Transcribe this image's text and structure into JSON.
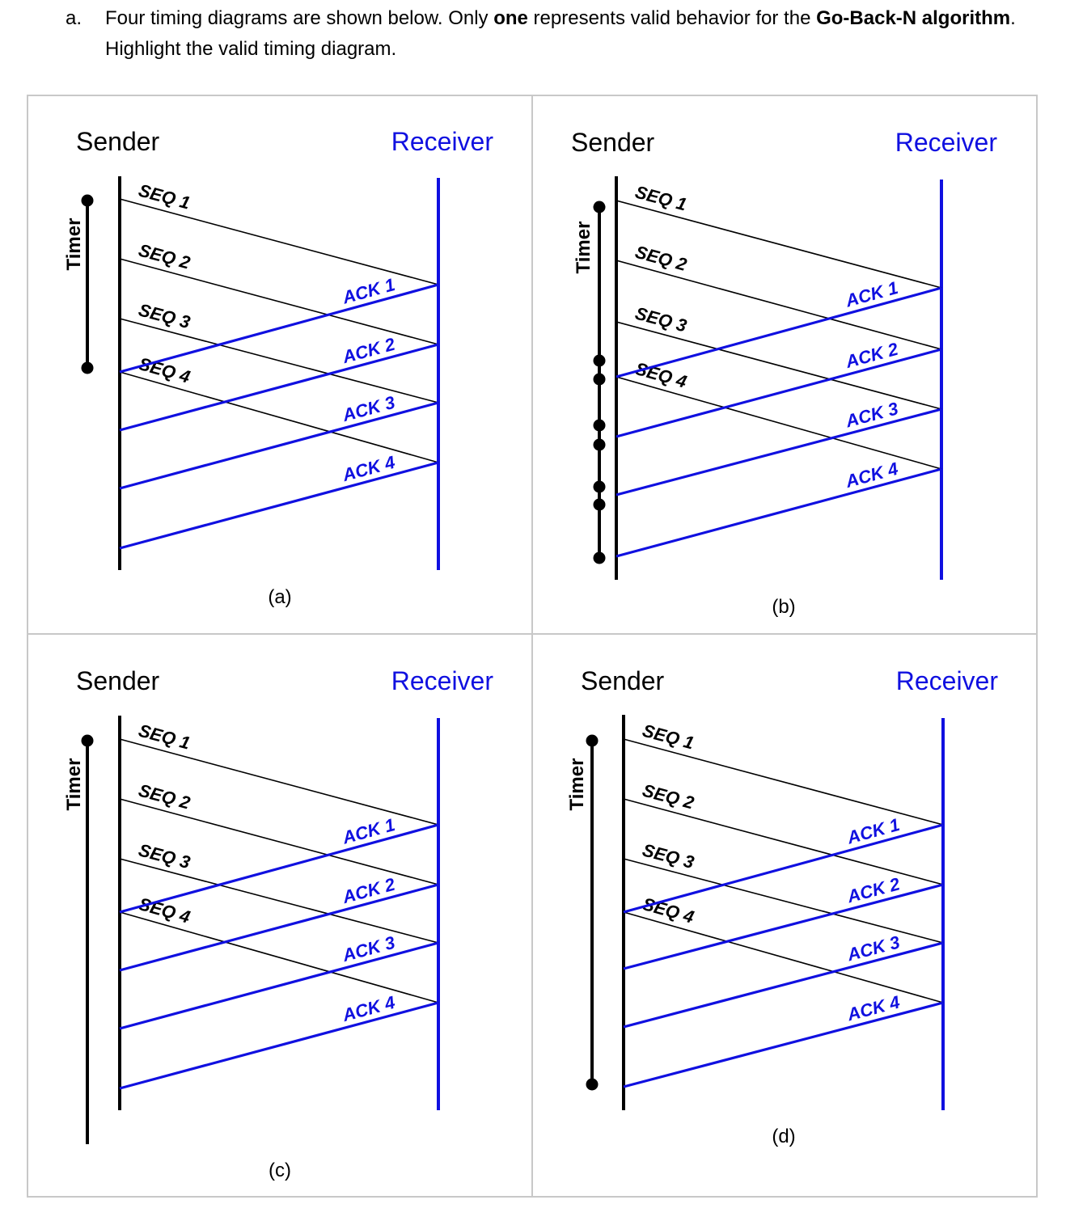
{
  "question": {
    "marker": "a.",
    "text_1": "Four timing diagrams are shown below. Only ",
    "bold_1": "one",
    "text_2": " represents valid behavior for the ",
    "bold_2": "Go-Back-N algorithm",
    "text_3": ". Highlight the valid timing diagram."
  },
  "colors": {
    "receiver": "#1010e0",
    "sender": "#000000",
    "border": "#c8c8c8"
  },
  "panels": [
    {
      "id": "a",
      "caption": "(a)",
      "sender_label": "Sender",
      "receiver_label": "Receiver",
      "timer_label": "Timer",
      "seq_labels": [
        "SEQ 1",
        "SEQ 2",
        "SEQ 3",
        "SEQ 4"
      ],
      "ack_labels": [
        "ACK 1",
        "ACK 2",
        "ACK 3",
        "ACK 4"
      ]
    },
    {
      "id": "b",
      "caption": "(b)",
      "sender_label": "Sender",
      "receiver_label": "Receiver",
      "timer_label": "Timer",
      "seq_labels": [
        "SEQ 1",
        "SEQ 2",
        "SEQ 3",
        "SEQ 4"
      ],
      "ack_labels": [
        "ACK 1",
        "ACK 2",
        "ACK 3",
        "ACK 4"
      ]
    },
    {
      "id": "c",
      "caption": "(c)",
      "sender_label": "Sender",
      "receiver_label": "Receiver",
      "timer_label": "Timer",
      "seq_labels": [
        "SEQ 1",
        "SEQ 2",
        "SEQ 3",
        "SEQ 4"
      ],
      "ack_labels": [
        "ACK 1",
        "ACK 2",
        "ACK 3",
        "ACK 4"
      ]
    },
    {
      "id": "d",
      "caption": "(d)",
      "sender_label": "Sender",
      "receiver_label": "Receiver",
      "timer_label": "Timer",
      "seq_labels": [
        "SEQ 1",
        "SEQ 2",
        "SEQ 3",
        "SEQ 4"
      ],
      "ack_labels": [
        "ACK 1",
        "ACK 2",
        "ACK 3",
        "ACK 4"
      ]
    }
  ]
}
